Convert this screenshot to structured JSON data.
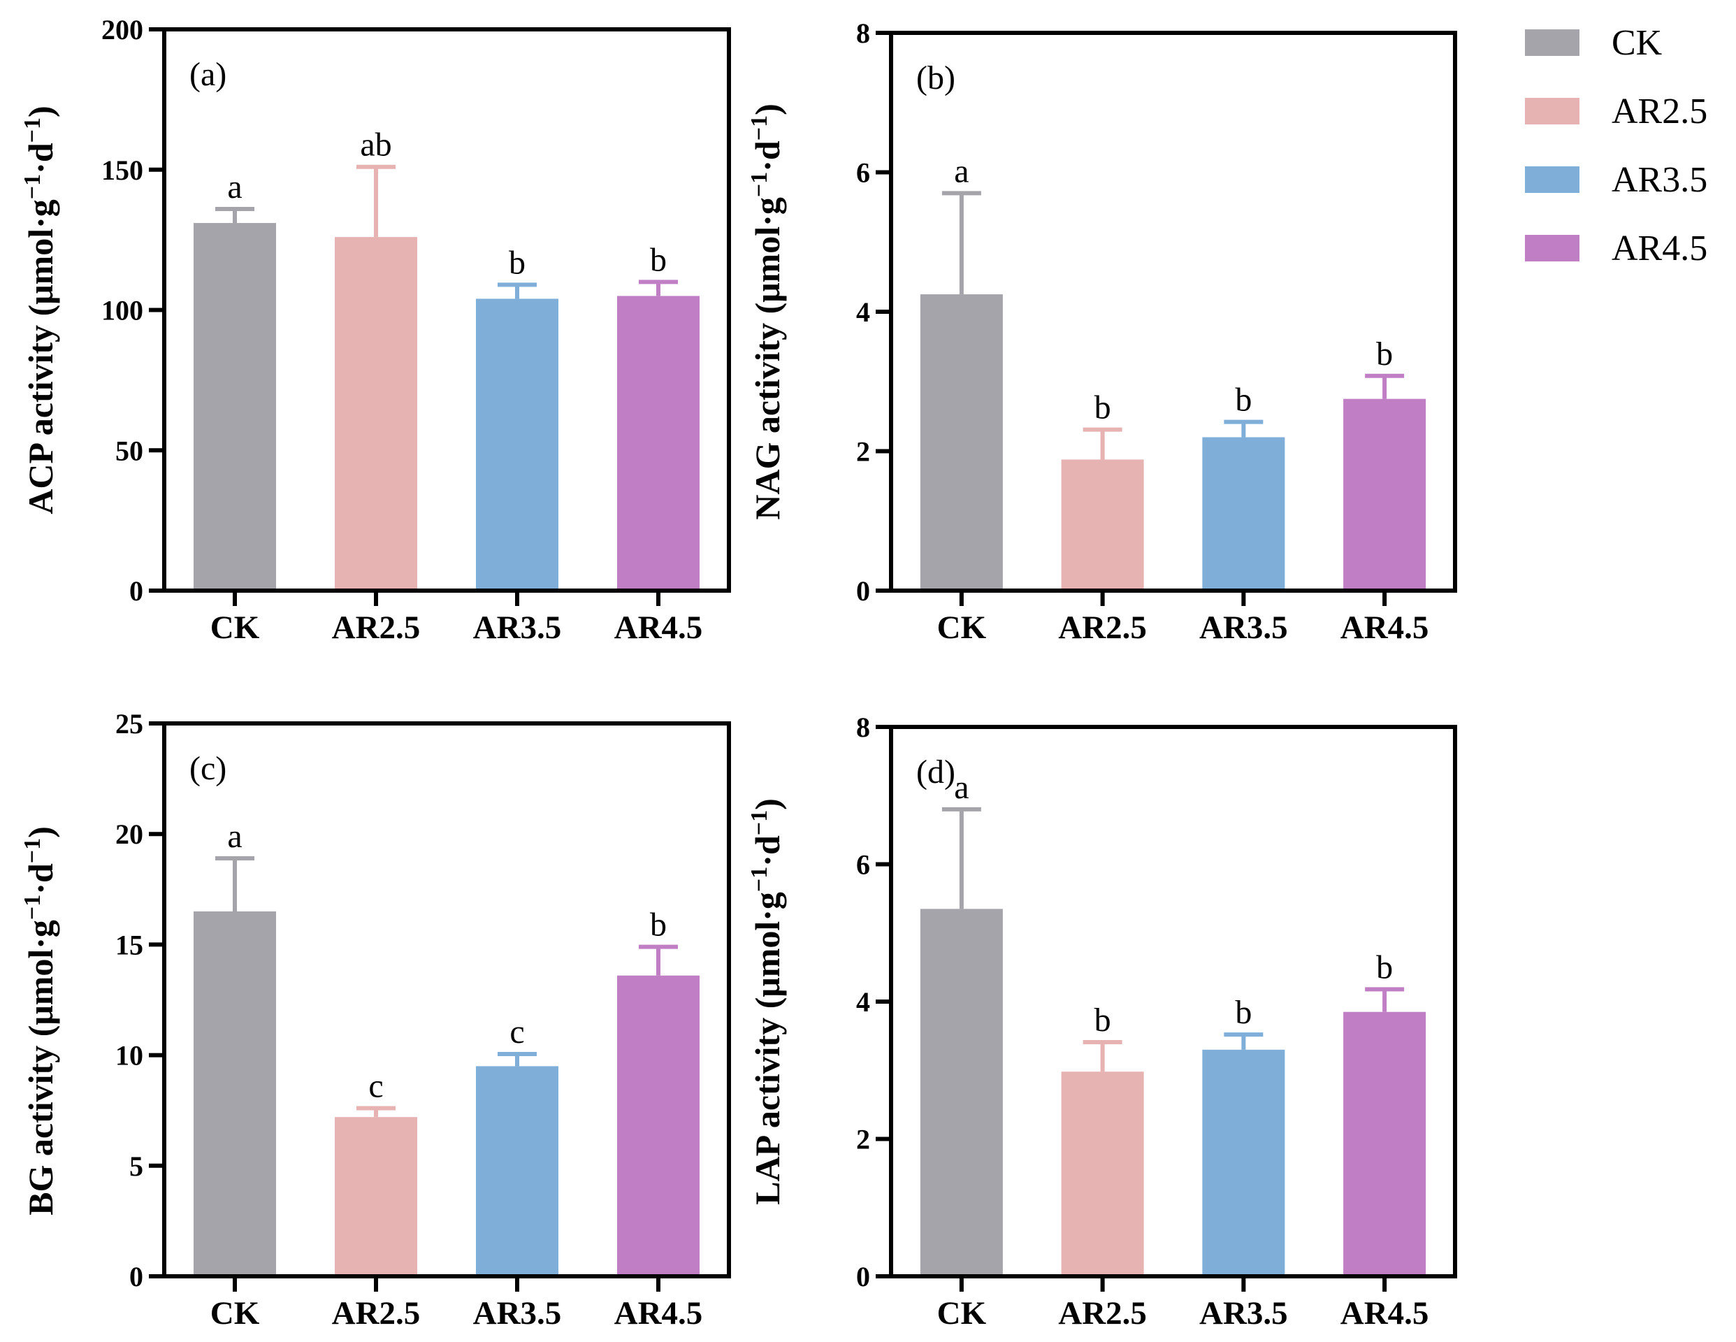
{
  "legend": {
    "items": [
      {
        "label": "CK",
        "color": "#a5a4aa"
      },
      {
        "label": "AR2.5",
        "color": "#e7b2b2"
      },
      {
        "label": "AR3.5",
        "color": "#7fafd8"
      },
      {
        "label": "AR4.5",
        "color": "#c07fc5"
      }
    ]
  },
  "chart_data": [
    {
      "type": "bar",
      "panel": "(a)",
      "title": "",
      "xlabel": "",
      "ylabel": "ACP activity (μmol·g−1·d−1)",
      "ylabel_parts": {
        "main": "ACP activity (μmol·g",
        "sup1": "−1",
        "mid": "·d",
        "sup2": "−1",
        "end": ")"
      },
      "categories": [
        "CK",
        "AR2.5",
        "AR3.5",
        "AR4.5"
      ],
      "values": [
        131,
        126,
        104,
        105
      ],
      "errors": [
        5,
        25,
        5,
        5
      ],
      "significance": [
        "a",
        "ab",
        "b",
        "b"
      ],
      "ylim": [
        0,
        200
      ],
      "yticks": [
        0,
        50,
        100,
        150,
        200
      ],
      "grid": false
    },
    {
      "type": "bar",
      "panel": "(b)",
      "title": "",
      "xlabel": "",
      "ylabel": "NAG activity (μmol·g−1·d−1)",
      "ylabel_parts": {
        "main": "NAG activity (μmol·g",
        "sup1": "−1",
        "mid": "·d",
        "sup2": "−1",
        "end": ")"
      },
      "categories": [
        "CK",
        "AR2.5",
        "AR3.5",
        "AR4.5"
      ],
      "values": [
        4.25,
        1.88,
        2.2,
        2.75
      ],
      "errors": [
        1.45,
        0.43,
        0.22,
        0.33
      ],
      "significance": [
        "a",
        "b",
        "b",
        "b"
      ],
      "ylim": [
        0,
        8
      ],
      "yticks": [
        0,
        2,
        4,
        6,
        8
      ],
      "grid": false
    },
    {
      "type": "bar",
      "panel": "(c)",
      "title": "",
      "xlabel": "",
      "ylabel": "BG activity (μmol·g−1·d−1)",
      "ylabel_parts": {
        "main": "BG activity (μmol·g",
        "sup1": "−1",
        "mid": "·d",
        "sup2": "−1",
        "end": ")"
      },
      "categories": [
        "CK",
        "AR2.5",
        "AR3.5",
        "AR4.5"
      ],
      "values": [
        16.5,
        7.2,
        9.5,
        13.6
      ],
      "errors": [
        2.4,
        0.4,
        0.55,
        1.3
      ],
      "significance": [
        "a",
        "c",
        "c",
        "b"
      ],
      "ylim": [
        0,
        25
      ],
      "yticks": [
        0,
        5,
        10,
        15,
        20,
        25
      ],
      "grid": false
    },
    {
      "type": "bar",
      "panel": "(d)",
      "title": "",
      "xlabel": "",
      "ylabel": "LAP activity (μmol·g−1·d−1)",
      "ylabel_parts": {
        "main": "LAP activity (μmol·g",
        "sup1": "−1",
        "mid": "·d",
        "sup2": "−1",
        "end": ")"
      },
      "categories": [
        "CK",
        "AR2.5",
        "AR3.5",
        "AR4.5"
      ],
      "values": [
        5.35,
        2.98,
        3.3,
        3.85
      ],
      "errors": [
        1.45,
        0.43,
        0.22,
        0.33
      ],
      "significance": [
        "a",
        "b",
        "b",
        "b"
      ],
      "ylim": [
        0,
        8
      ],
      "yticks": [
        0,
        2,
        4,
        6,
        8
      ],
      "grid": false
    }
  ]
}
